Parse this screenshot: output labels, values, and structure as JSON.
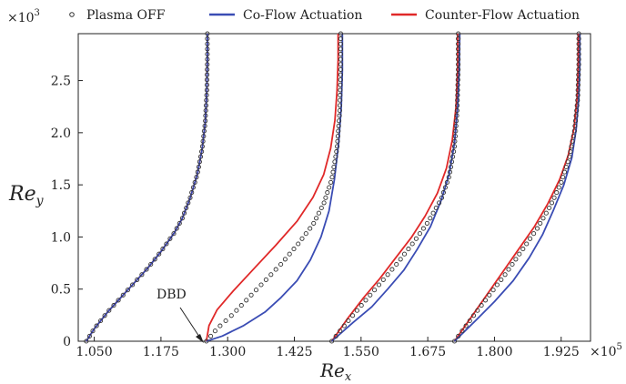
{
  "chart_data": {
    "type": "line",
    "xlabel": "Re",
    "xlabel_sub": "x",
    "ylabel": "Re",
    "ylabel_sub": "y",
    "x_multiplier": "×10",
    "x_multiplier_exp": "5",
    "y_multiplier": "×10",
    "y_multiplier_exp": "3",
    "xlim": [
      1.02,
      1.98
    ],
    "ylim": [
      0,
      2.95
    ],
    "xticks": [
      1.05,
      1.175,
      1.3,
      1.425,
      1.55,
      1.675,
      1.8,
      1.925
    ],
    "xtick_labels": [
      "1.050",
      "1.175",
      "1.300",
      "1.425",
      "1.550",
      "1.675",
      "1.800",
      "1.925"
    ],
    "yticks": [
      0,
      0.5,
      1.0,
      1.5,
      2.0,
      2.5
    ],
    "ytick_labels": [
      "0",
      "0.5",
      "1.0",
      "1.5",
      "2.0",
      "2.5"
    ],
    "grid": false,
    "legend_position": "top",
    "annotation": {
      "text": "DBD",
      "x": 1.26,
      "y": 0.0
    },
    "series": [
      {
        "name": "Plasma OFF",
        "style": "markers",
        "color": "#333333",
        "profiles": [
          {
            "x": [
              1.035,
              1.05,
              1.075,
              1.1,
              1.125,
              1.15,
              1.175,
              1.2,
              1.215,
              1.23,
              1.243,
              1.252,
              1.258,
              1.261,
              1.262,
              1.262
            ],
            "y": [
              0,
              0.12,
              0.28,
              0.42,
              0.56,
              0.7,
              0.86,
              1.04,
              1.18,
              1.38,
              1.6,
              1.84,
              2.1,
              2.4,
              2.7,
              2.95
            ]
          },
          {
            "x": [
              1.26,
              1.28,
              1.31,
              1.34,
              1.37,
              1.4,
              1.43,
              1.46,
              1.48,
              1.495,
              1.505,
              1.51,
              1.512,
              1.512
            ],
            "y": [
              0,
              0.12,
              0.26,
              0.42,
              0.58,
              0.74,
              0.92,
              1.12,
              1.32,
              1.55,
              1.85,
              2.2,
              2.6,
              2.95
            ]
          },
          {
            "x": [
              1.495,
              1.53,
              1.56,
              1.59,
              1.62,
              1.65,
              1.675,
              1.7,
              1.715,
              1.725,
              1.73,
              1.732,
              1.732
            ],
            "y": [
              0,
              0.22,
              0.4,
              0.58,
              0.76,
              0.96,
              1.14,
              1.36,
              1.58,
              1.86,
              2.2,
              2.6,
              2.95
            ]
          },
          {
            "x": [
              1.725,
              1.76,
              1.79,
              1.82,
              1.85,
              1.88,
              1.905,
              1.925,
              1.94,
              1.95,
              1.956,
              1.958,
              1.958
            ],
            "y": [
              0,
              0.24,
              0.44,
              0.64,
              0.86,
              1.08,
              1.3,
              1.52,
              1.76,
              2.02,
              2.32,
              2.65,
              2.95
            ]
          }
        ]
      },
      {
        "name": "Co-Flow Actuation",
        "style": "line",
        "color": "#3a4cb4",
        "profiles": [
          {
            "x": [
              1.035,
              1.05,
              1.075,
              1.1,
              1.125,
              1.15,
              1.175,
              1.2,
              1.215,
              1.23,
              1.243,
              1.252,
              1.258,
              1.261,
              1.262,
              1.262
            ],
            "y": [
              0,
              0.12,
              0.28,
              0.42,
              0.56,
              0.7,
              0.86,
              1.04,
              1.18,
              1.38,
              1.6,
              1.84,
              2.1,
              2.4,
              2.7,
              2.95
            ]
          },
          {
            "x": [
              1.26,
              1.29,
              1.33,
              1.37,
              1.4,
              1.43,
              1.455,
              1.475,
              1.49,
              1.5,
              1.508,
              1.513,
              1.515,
              1.515
            ],
            "y": [
              0,
              0.05,
              0.15,
              0.28,
              0.42,
              0.58,
              0.78,
              1.0,
              1.25,
              1.55,
              1.9,
              2.25,
              2.6,
              2.95
            ]
          },
          {
            "x": [
              1.495,
              1.535,
              1.57,
              1.6,
              1.63,
              1.655,
              1.68,
              1.7,
              1.715,
              1.725,
              1.731,
              1.734,
              1.735
            ],
            "y": [
              0,
              0.18,
              0.33,
              0.5,
              0.68,
              0.88,
              1.1,
              1.35,
              1.6,
              1.9,
              2.25,
              2.6,
              2.95
            ]
          },
          {
            "x": [
              1.725,
              1.765,
              1.8,
              1.835,
              1.865,
              1.89,
              1.91,
              1.93,
              1.945,
              1.953,
              1.958,
              1.96,
              1.96
            ],
            "y": [
              0,
              0.2,
              0.38,
              0.58,
              0.8,
              1.02,
              1.25,
              1.5,
              1.76,
              2.03,
              2.33,
              2.65,
              2.95
            ]
          }
        ]
      },
      {
        "name": "Counter-Flow Actuation",
        "style": "line",
        "color": "#e02828",
        "profiles": [
          {
            "x": [
              1.035,
              1.05,
              1.075,
              1.1,
              1.125,
              1.15,
              1.175,
              1.2,
              1.215,
              1.23,
              1.243,
              1.252,
              1.258,
              1.261,
              1.262,
              1.262
            ],
            "y": [
              0,
              0.12,
              0.28,
              0.42,
              0.56,
              0.7,
              0.86,
              1.04,
              1.18,
              1.38,
              1.6,
              1.84,
              2.1,
              2.4,
              2.7,
              2.95
            ]
          },
          {
            "x": [
              1.26,
              1.265,
              1.28,
              1.31,
              1.35,
              1.39,
              1.43,
              1.46,
              1.48,
              1.493,
              1.501,
              1.505,
              1.507,
              1.507
            ],
            "y": [
              0,
              0.15,
              0.3,
              0.48,
              0.7,
              0.92,
              1.15,
              1.38,
              1.6,
              1.85,
              2.12,
              2.4,
              2.7,
              2.95
            ]
          },
          {
            "x": [
              1.495,
              1.525,
              1.555,
              1.585,
              1.615,
              1.645,
              1.67,
              1.693,
              1.71,
              1.721,
              1.728,
              1.731,
              1.731
            ],
            "y": [
              0,
              0.22,
              0.42,
              0.6,
              0.8,
              1.0,
              1.2,
              1.42,
              1.66,
              1.93,
              2.25,
              2.6,
              2.95
            ]
          },
          {
            "x": [
              1.725,
              1.755,
              1.785,
              1.815,
              1.845,
              1.875,
              1.9,
              1.922,
              1.938,
              1.949,
              1.955,
              1.957,
              1.957
            ],
            "y": [
              0,
              0.22,
              0.44,
              0.66,
              0.88,
              1.1,
              1.32,
              1.55,
              1.78,
              2.04,
              2.34,
              2.66,
              2.95
            ]
          }
        ]
      }
    ]
  }
}
